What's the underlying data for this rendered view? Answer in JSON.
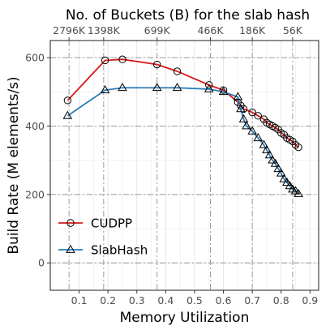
{
  "chart_data": {
    "type": "line",
    "title": "No. of Buckets (B) for the slab hash",
    "xlabel": "Memory Utilization",
    "ylabel": "Build Rate (M elements/s)",
    "xlim": [
      0.0,
      0.93
    ],
    "ylim": [
      -80,
      650
    ],
    "x_ticks": [
      0.1,
      0.2,
      0.3,
      0.4,
      0.5,
      0.6,
      0.7,
      0.8,
      0.9
    ],
    "x_tick_labels": [
      "0.1",
      "0.2",
      "0.3",
      "0.4",
      "0.5",
      "0.6",
      "0.7",
      "0.8",
      "0.9"
    ],
    "y_ticks": [
      0,
      200,
      400,
      600
    ],
    "y_tick_labels": [
      "0",
      "200",
      "400",
      "600"
    ],
    "top_axis": {
      "positions": [
        0.065,
        0.185,
        0.37,
        0.555,
        0.7,
        0.84
      ],
      "labels": [
        "2796K",
        "1398K",
        "699K",
        "466K",
        "186K",
        "56K"
      ]
    },
    "grid": true,
    "legend_position": "bottom-left",
    "series": [
      {
        "name": "CUDPP",
        "color": "#d7191c",
        "marker": "circle",
        "x": [
          0.06,
          0.19,
          0.25,
          0.37,
          0.44,
          0.55,
          0.6,
          0.65,
          0.66,
          0.67,
          0.7,
          0.72,
          0.74,
          0.75,
          0.76,
          0.77,
          0.78,
          0.79,
          0.8,
          0.81,
          0.82,
          0.83,
          0.84,
          0.85,
          0.86
        ],
        "y": [
          475,
          592,
          595,
          580,
          560,
          520,
          505,
          470,
          460,
          450,
          440,
          430,
          420,
          410,
          405,
          400,
          395,
          390,
          380,
          375,
          365,
          360,
          355,
          345,
          338
        ]
      },
      {
        "name": "SlabHash",
        "color": "#2c7bb6",
        "marker": "triangle",
        "x": [
          0.06,
          0.19,
          0.25,
          0.37,
          0.44,
          0.55,
          0.6,
          0.65,
          0.66,
          0.67,
          0.68,
          0.7,
          0.72,
          0.74,
          0.75,
          0.76,
          0.77,
          0.78,
          0.79,
          0.8,
          0.81,
          0.82,
          0.83,
          0.84,
          0.85,
          0.86
        ],
        "y": [
          430,
          505,
          512,
          512,
          512,
          508,
          500,
          485,
          450,
          420,
          400,
          385,
          365,
          345,
          330,
          315,
          300,
          290,
          275,
          262,
          245,
          235,
          225,
          215,
          210,
          202
        ]
      }
    ]
  }
}
